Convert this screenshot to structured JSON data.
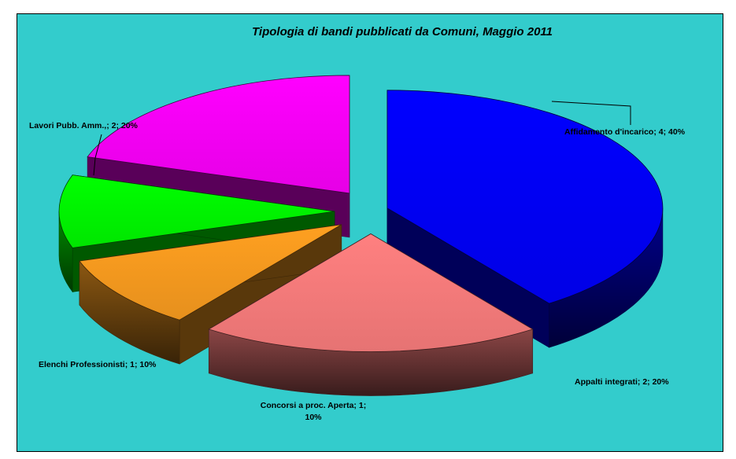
{
  "chart_data": {
    "type": "pie",
    "style": "3d-exploded",
    "title": "Tipologia di bandi pubblicati da Comuni, Maggio 2011",
    "slices": [
      {
        "name": "Affidamento d'incarico",
        "value": 4,
        "percent": "40%",
        "label": "Affidamento d'incarico; 4; 40%",
        "color": "#0000ff"
      },
      {
        "name": "Appalti integrati",
        "value": 2,
        "percent": "20%",
        "label": "Appalti integrati; 2; 20%",
        "color": "#ff8080"
      },
      {
        "name": "Concorsi a proc. Aperta",
        "value": 1,
        "percent": "10%",
        "label_line1": "Concorsi a proc. Aperta; 1;",
        "label_line2": "10%",
        "color": "#ffa020"
      },
      {
        "name": "Elenchi Professionisti",
        "value": 1,
        "percent": "10%",
        "label": "Elenchi Professionisti; 1; 10%",
        "color": "#00ff00"
      },
      {
        "name": "Lavori Pubb. Amm.,",
        "value": 2,
        "percent": "20%",
        "label": "Lavori Pubb. Amm.,; 2; 20%",
        "color": "#ff00ff"
      }
    ],
    "background_color": "#33cccc"
  }
}
